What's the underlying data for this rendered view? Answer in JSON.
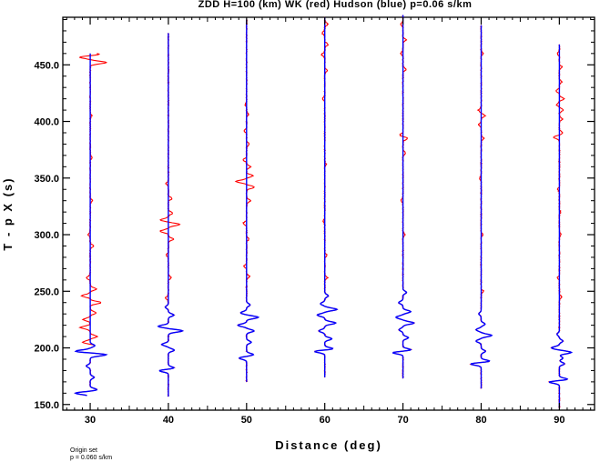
{
  "chart_data": {
    "type": "line",
    "title": "ZDD H=100 (km) WK (red) Hudson (blue) p=0.06 s/km",
    "xlabel": "Distance (deg)",
    "ylabel": "T - p X (s)",
    "xlim": [
      26.5,
      94.5
    ],
    "ylim": [
      145,
      492
    ],
    "xticks": [
      30,
      40,
      50,
      60,
      70,
      80,
      90
    ],
    "yticks": [
      150.0,
      200.0,
      250.0,
      300.0,
      350.0,
      400.0,
      450.0
    ],
    "ytick_labels": [
      "150.0",
      "200.0",
      "250.0",
      "300.0",
      "350.0",
      "400.0",
      "450.0"
    ],
    "footnote": [
      "Origin set",
      "p = 0.060 s/km"
    ],
    "colors": {
      "WK": "#ff0000",
      "Hudson": "#0000ff"
    },
    "traces": [
      {
        "distance": 30,
        "t_start": 158,
        "t_end": 460,
        "blue": [
          [
            160,
            -3.8
          ],
          [
            163,
            1.8
          ],
          [
            174,
            1.0
          ],
          [
            184,
            -1.0
          ],
          [
            194,
            4.2
          ],
          [
            197,
            -3.8
          ],
          [
            202,
            1.2
          ]
        ],
        "red_extra": [
          [
            205,
            -2.0
          ],
          [
            210,
            1.8
          ],
          [
            218,
            -2.6
          ],
          [
            225,
            -1.8
          ],
          [
            231,
            1.6
          ],
          [
            240,
            2.8
          ],
          [
            246,
            -2.2
          ],
          [
            252,
            1.6
          ],
          [
            262,
            -1.0
          ],
          [
            290,
            0.8
          ],
          [
            300,
            -0.5
          ],
          [
            330,
            0.6
          ],
          [
            368,
            0.5
          ],
          [
            405,
            0.4
          ],
          [
            452,
            4.2
          ],
          [
            457,
            -3.2
          ],
          [
            459,
            2.8
          ]
        ]
      },
      {
        "distance": 40,
        "t_start": 157,
        "t_end": 478,
        "blue": [
          [
            180,
            -2.6
          ],
          [
            182,
            1.8
          ],
          [
            198,
            1.5
          ],
          [
            203,
            -1.7
          ],
          [
            215,
            3.6
          ],
          [
            219,
            -2.6
          ],
          [
            229,
            1.4
          ],
          [
            236,
            -0.8
          ]
        ],
        "red_extra": [
          [
            244,
            -0.8
          ],
          [
            262,
            0.7
          ],
          [
            282,
            -0.5
          ],
          [
            296,
            1.4
          ],
          [
            303,
            -2.2
          ],
          [
            309,
            3.0
          ],
          [
            313,
            -2.0
          ],
          [
            319,
            1.1
          ],
          [
            332,
            0.9
          ],
          [
            345,
            -0.6
          ]
        ]
      },
      {
        "distance": 50,
        "t_start": 170,
        "t_end": 490,
        "blue": [
          [
            191,
            -1.9
          ],
          [
            194,
            1.8
          ],
          [
            205,
            1.2
          ],
          [
            215,
            1.9
          ],
          [
            220,
            -2.2
          ],
          [
            227,
            3.0
          ],
          [
            231,
            -1.5
          ],
          [
            238,
            0.9
          ]
        ],
        "red_extra": [
          [
            263,
            0.8
          ],
          [
            272,
            -0.7
          ],
          [
            296,
            0.6
          ],
          [
            310,
            -0.9
          ],
          [
            330,
            1.1
          ],
          [
            342,
            2.0
          ],
          [
            347,
            -2.8
          ],
          [
            352,
            1.6
          ],
          [
            360,
            1.0
          ],
          [
            366,
            -0.8
          ],
          [
            380,
            0.7
          ],
          [
            392,
            -0.7
          ],
          [
            406,
            0.5
          ],
          [
            415,
            -0.4
          ]
        ]
      },
      {
        "distance": 60,
        "t_start": 174,
        "t_end": 492,
        "blue": [
          [
            197,
            -3.0
          ],
          [
            199,
            2.5
          ],
          [
            208,
            1.8
          ],
          [
            215,
            -1.5
          ],
          [
            222,
            2.8
          ],
          [
            229,
            -1.9
          ],
          [
            234,
            3.1
          ],
          [
            239,
            -1.1
          ],
          [
            246,
            0.9
          ]
        ],
        "red_extra": [
          [
            262,
            0.7
          ],
          [
            282,
            0.6
          ],
          [
            312,
            -0.4
          ],
          [
            362,
            0.4
          ],
          [
            420,
            -0.6
          ],
          [
            445,
            0.7
          ],
          [
            459,
            -0.8
          ],
          [
            468,
            0.9
          ],
          [
            478,
            -0.7
          ],
          [
            486,
            0.8
          ]
        ]
      },
      {
        "distance": 70,
        "t_start": 173,
        "t_end": 494,
        "blue": [
          [
            196,
            -3.0
          ],
          [
            198,
            2.5
          ],
          [
            209,
            1.4
          ],
          [
            216,
            -1.0
          ],
          [
            222,
            2.8
          ],
          [
            227,
            -1.8
          ],
          [
            232,
            2.0
          ],
          [
            240,
            -1.1
          ],
          [
            249,
            0.9
          ]
        ],
        "red_extra": [
          [
            300,
            0.5
          ],
          [
            330,
            -0.5
          ],
          [
            372,
            0.7
          ],
          [
            385,
            1.2
          ],
          [
            388,
            -0.8
          ],
          [
            446,
            0.8
          ],
          [
            460,
            -0.6
          ],
          [
            472,
            0.8
          ],
          [
            486,
            -0.6
          ]
        ]
      },
      {
        "distance": 80,
        "t_start": 164,
        "t_end": 485,
        "blue": [
          [
            186,
            -3.1
          ],
          [
            188,
            2.6
          ],
          [
            197,
            1.1
          ],
          [
            206,
            -1.3
          ],
          [
            211,
            2.7
          ],
          [
            216,
            -1.3
          ],
          [
            221,
            1.0
          ],
          [
            230,
            -0.6
          ]
        ],
        "red_extra": [
          [
            250,
            0.6
          ],
          [
            300,
            0.4
          ],
          [
            350,
            -0.4
          ],
          [
            385,
            0.7
          ],
          [
            397,
            -0.6
          ],
          [
            405,
            1.0
          ],
          [
            410,
            -0.7
          ],
          [
            460,
            0.5
          ]
        ]
      },
      {
        "distance": 90,
        "t_start": 147,
        "t_end": 468,
        "blue": [
          [
            170,
            -3.0
          ],
          [
            172,
            2.5
          ],
          [
            186,
            1.3
          ],
          [
            191,
            0.9
          ],
          [
            196,
            3.1
          ],
          [
            200,
            -2.0
          ],
          [
            206,
            0.9
          ],
          [
            212,
            -0.6
          ]
        ],
        "red_extra": [
          [
            245,
            0.6
          ],
          [
            262,
            -0.5
          ],
          [
            300,
            0.4
          ],
          [
            320,
            0.3
          ],
          [
            340,
            -0.4
          ],
          [
            386,
            -1.5
          ],
          [
            390,
            0.9
          ],
          [
            402,
            0.8
          ],
          [
            410,
            1.0
          ],
          [
            415,
            -0.7
          ],
          [
            420,
            1.2
          ],
          [
            427,
            -0.9
          ],
          [
            435,
            0.6
          ],
          [
            448,
            0.7
          ],
          [
            460,
            -0.5
          ]
        ]
      }
    ]
  }
}
